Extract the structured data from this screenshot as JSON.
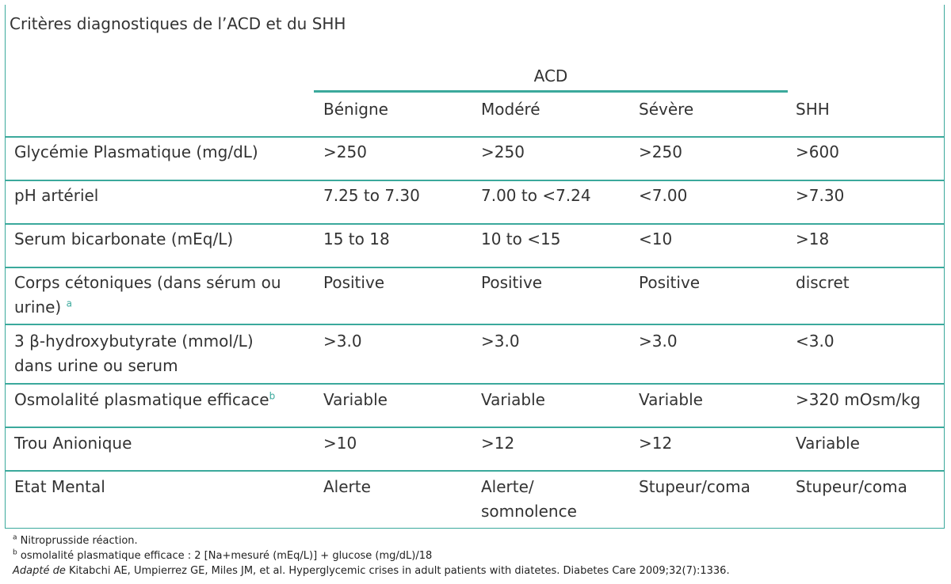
{
  "title": "Critères diagnostiques de l’ACD et du SHH",
  "group_header": "ACD",
  "columns": [
    "Bénigne",
    "Modéré",
    "Sévère",
    "SHH"
  ],
  "rows": [
    {
      "label": "Glycémie Plasmatique (mg/dL)",
      "sup": "",
      "values": [
        ">250",
        ">250",
        ">250",
        ">600"
      ]
    },
    {
      "label": "pH artériel",
      "sup": "",
      "values": [
        "7.25 to 7.30",
        "7.00 to <7.24",
        "<7.00",
        ">7.30"
      ]
    },
    {
      "label": "Serum bicarbonate (mEq/L)",
      "sup": "",
      "values": [
        "15 to 18",
        "10 to <15",
        "<10",
        ">18"
      ]
    },
    {
      "label": "Corps cétoniques (dans sérum ou urine)",
      "sup": "a",
      "values": [
        "Positive",
        "Positive",
        "Positive",
        "discret"
      ]
    },
    {
      "label": "3 β-hydroxybutyrate (mmol/L) dans urine ou serum",
      "sup": "",
      "values": [
        ">3.0",
        ">3.0",
        ">3.0",
        "<3.0"
      ]
    },
    {
      "label": "Osmolalité plasmatique efficace",
      "sup": "b",
      "values": [
        "Variable",
        "Variable",
        "Variable",
        ">320 mOsm/kg"
      ]
    },
    {
      "label": "Trou Anionique",
      "sup": "",
      "values": [
        ">10",
        ">12",
        ">12",
        "Variable"
      ]
    },
    {
      "label": "Etat Mental",
      "sup": "",
      "values": [
        "Alerte",
        "Alerte/ somnolence",
        "Stupeur/coma",
        "Stupeur/coma"
      ]
    }
  ],
  "footnotes": {
    "a_mark": "a",
    "a_text": "Nitroprusside réaction.",
    "b_mark": "b",
    "b_text": "osmolalité plasmatique efficace : 2 [Na+mesuré (mEq/L)] + glucose (mg/dL)/18",
    "source_italic": "Adapté de",
    "source_text": "Kitabchi AE, Umpierrez GE, Miles JM, et al. Hyperglycemic crises in adult patients with diatetes. Diabetes Care 2009;32(7):1336."
  },
  "colors": {
    "accent": "#3ba99c",
    "text": "#333333"
  }
}
